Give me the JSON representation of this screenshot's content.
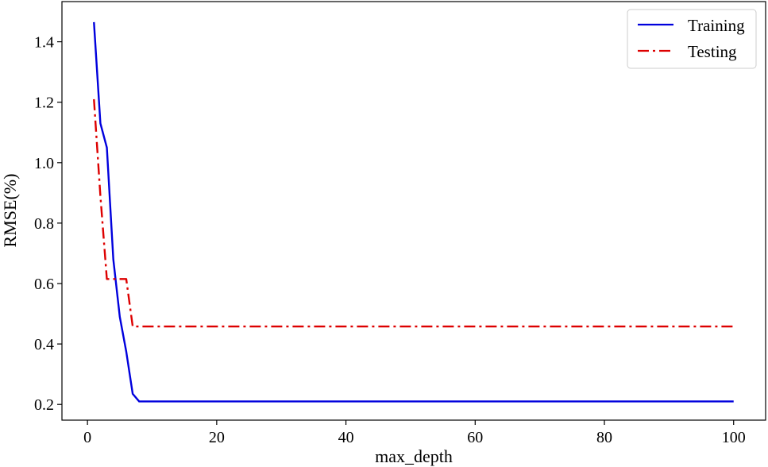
{
  "chart_data": {
    "type": "line",
    "title": "",
    "xlabel": "max_depth",
    "ylabel": "RMSE(%)",
    "xlim": [
      -3.95,
      104.95
    ],
    "ylim": [
      0.148,
      1.533
    ],
    "xticks": [
      0,
      20,
      40,
      60,
      80,
      100
    ],
    "yticks": [
      0.2,
      0.4,
      0.6,
      0.8,
      1.0,
      1.2,
      1.4
    ],
    "xtick_labels": [
      "0",
      "20",
      "40",
      "60",
      "80",
      "100"
    ],
    "ytick_labels": [
      "0.2",
      "0.4",
      "0.6",
      "0.8",
      "1.0",
      "1.2",
      "1.4"
    ],
    "grid": false,
    "legend_position": "top-right",
    "series": [
      {
        "name": "Training",
        "color": "#0000dd",
        "line_style": "solid",
        "x": [
          1,
          2,
          3,
          4,
          5,
          6,
          7,
          8,
          100
        ],
        "y": [
          1.465,
          1.13,
          1.05,
          0.68,
          0.49,
          0.375,
          0.235,
          0.21,
          0.21
        ]
      },
      {
        "name": "Testing",
        "color": "#dd0000",
        "line_style": "dashdot",
        "x": [
          1,
          2,
          3,
          4,
          5,
          6,
          7,
          100
        ],
        "y": [
          1.21,
          0.89,
          0.615,
          0.615,
          0.615,
          0.615,
          0.458,
          0.458
        ]
      }
    ]
  }
}
